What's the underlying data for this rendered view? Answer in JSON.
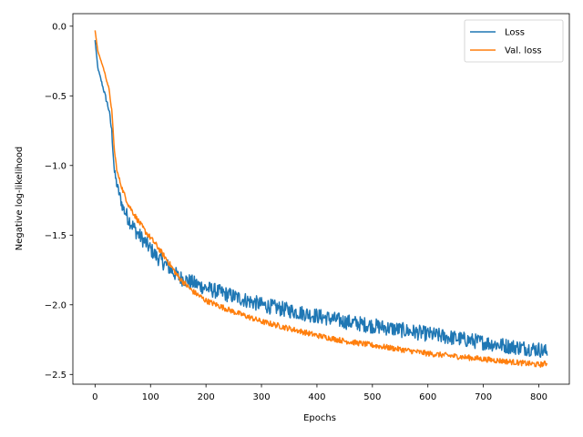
{
  "chart_data": {
    "type": "line",
    "title": "",
    "xlabel": "Epochs",
    "ylabel": "Negative log-likelihood",
    "xlim": [
      -40,
      855
    ],
    "ylim": [
      -2.57,
      0.09
    ],
    "x_ticks": [
      0,
      100,
      200,
      300,
      400,
      500,
      600,
      700,
      800
    ],
    "y_ticks": [
      0.0,
      -0.5,
      -1.0,
      -1.5,
      -2.0,
      -2.5
    ],
    "x_tick_labels": [
      "0",
      "100",
      "200",
      "300",
      "400",
      "500",
      "600",
      "700",
      "800"
    ],
    "y_tick_labels": [
      "0.0",
      "−0.5",
      "−1.0",
      "−1.5",
      "−2.0",
      "−2.5"
    ],
    "grid": false,
    "legend_position": "top-right",
    "series": [
      {
        "name": "Loss",
        "color": "#1f77b4",
        "noise": 0.055,
        "points": [
          [
            0,
            -0.1
          ],
          [
            5,
            -0.3
          ],
          [
            15,
            -0.45
          ],
          [
            25,
            -0.6
          ],
          [
            30,
            -0.75
          ],
          [
            35,
            -1.05
          ],
          [
            40,
            -1.15
          ],
          [
            50,
            -1.3
          ],
          [
            60,
            -1.38
          ],
          [
            75,
            -1.48
          ],
          [
            90,
            -1.55
          ],
          [
            110,
            -1.65
          ],
          [
            130,
            -1.72
          ],
          [
            150,
            -1.8
          ],
          [
            175,
            -1.84
          ],
          [
            200,
            -1.88
          ],
          [
            250,
            -1.94
          ],
          [
            300,
            -2.0
          ],
          [
            350,
            -2.04
          ],
          [
            400,
            -2.08
          ],
          [
            450,
            -2.12
          ],
          [
            500,
            -2.15
          ],
          [
            550,
            -2.18
          ],
          [
            600,
            -2.21
          ],
          [
            650,
            -2.24
          ],
          [
            700,
            -2.27
          ],
          [
            750,
            -2.3
          ],
          [
            800,
            -2.32
          ],
          [
            815,
            -2.34
          ]
        ]
      },
      {
        "name": "Val. loss",
        "color": "#ff7f0e",
        "noise": 0.02,
        "points": [
          [
            0,
            -0.03
          ],
          [
            5,
            -0.18
          ],
          [
            15,
            -0.3
          ],
          [
            25,
            -0.45
          ],
          [
            30,
            -0.6
          ],
          [
            35,
            -0.9
          ],
          [
            40,
            -1.05
          ],
          [
            50,
            -1.18
          ],
          [
            60,
            -1.28
          ],
          [
            75,
            -1.38
          ],
          [
            90,
            -1.47
          ],
          [
            110,
            -1.57
          ],
          [
            130,
            -1.68
          ],
          [
            150,
            -1.8
          ],
          [
            175,
            -1.9
          ],
          [
            200,
            -1.97
          ],
          [
            250,
            -2.05
          ],
          [
            300,
            -2.12
          ],
          [
            350,
            -2.17
          ],
          [
            400,
            -2.22
          ],
          [
            450,
            -2.26
          ],
          [
            500,
            -2.29
          ],
          [
            550,
            -2.32
          ],
          [
            600,
            -2.35
          ],
          [
            650,
            -2.37
          ],
          [
            700,
            -2.39
          ],
          [
            750,
            -2.41
          ],
          [
            800,
            -2.43
          ],
          [
            815,
            -2.42
          ]
        ]
      }
    ]
  }
}
